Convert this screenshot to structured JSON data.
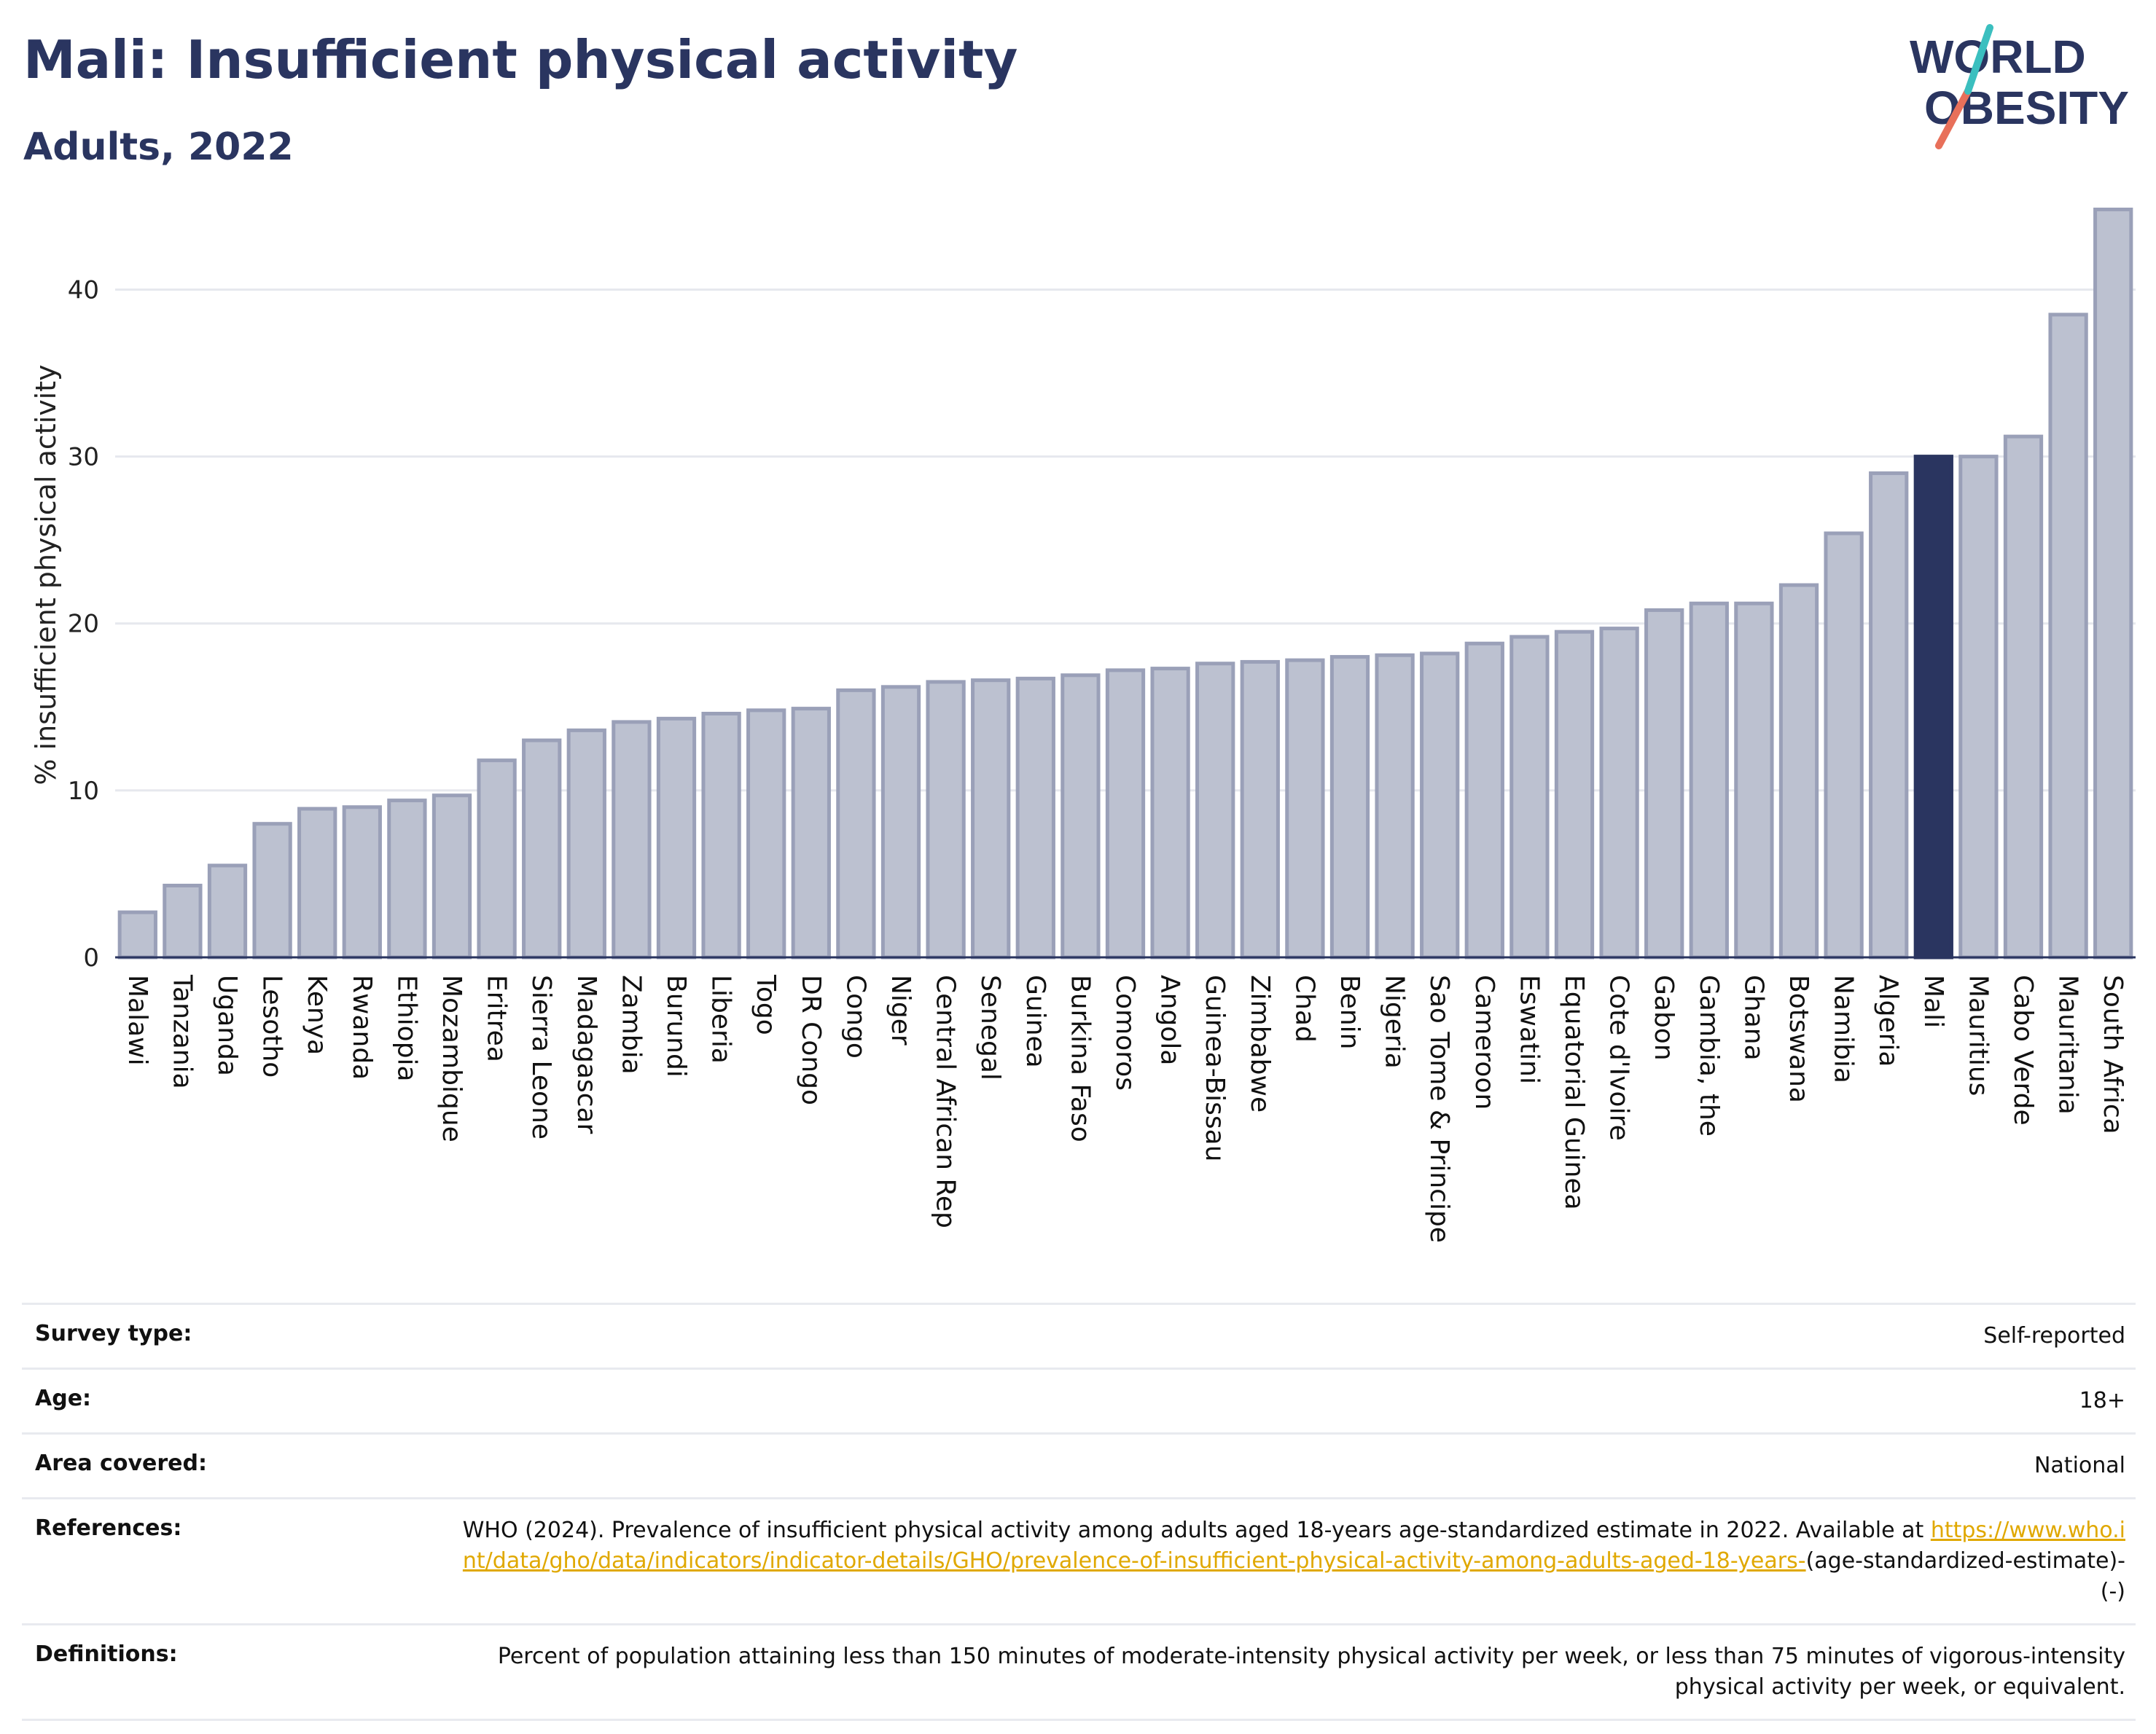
{
  "header": {
    "title": "Mali: Insufficient physical activity",
    "subtitle": "Adults, 2022"
  },
  "logo": {
    "line1": "WORLD",
    "line2": "OBESITY"
  },
  "colors": {
    "highlight": "#2a3560",
    "bar_fill": "#bcc1d0",
    "bar_stroke": "#9aa0b8",
    "grid": "#e6e8ee",
    "logo_teal": "#3bbfbf",
    "logo_coral": "#e8705a",
    "link": "#e0a800"
  },
  "chart_data": {
    "type": "bar",
    "ylabel": "% insufficient physical activity",
    "ylim": [
      0,
      46
    ],
    "yticks": [
      0,
      10,
      20,
      30,
      40
    ],
    "grid": true,
    "highlight": "Mali",
    "categories": [
      "Malawi",
      "Tanzania",
      "Uganda",
      "Lesotho",
      "Kenya",
      "Rwanda",
      "Ethiopia",
      "Mozambique",
      "Eritrea",
      "Sierra Leone",
      "Madagascar",
      "Zambia",
      "Burundi",
      "Liberia",
      "Togo",
      "DR Congo",
      "Congo",
      "Niger",
      "Central African Rep",
      "Senegal",
      "Guinea",
      "Burkina Faso",
      "Comoros",
      "Angola",
      "Guinea-Bissau",
      "Zimbabwe",
      "Chad",
      "Benin",
      "Nigeria",
      "Sao Tome & Principe",
      "Cameroon",
      "Eswatini",
      "Equatorial Guinea",
      "Cote d'Ivoire",
      "Gabon",
      "Gambia, the",
      "Ghana",
      "Botswana",
      "Namibia",
      "Algeria",
      "Mali",
      "Mauritius",
      "Cabo Verde",
      "Mauritania",
      "South Africa"
    ],
    "values": [
      2.7,
      4.3,
      5.5,
      8.0,
      8.9,
      9.0,
      9.4,
      9.7,
      11.8,
      13.0,
      13.6,
      14.1,
      14.3,
      14.6,
      14.8,
      14.9,
      16.0,
      16.2,
      16.5,
      16.6,
      16.7,
      16.9,
      17.2,
      17.3,
      17.6,
      17.7,
      17.8,
      18.0,
      18.1,
      18.2,
      18.8,
      19.2,
      19.5,
      19.7,
      20.8,
      21.2,
      21.2,
      22.3,
      25.4,
      29.0,
      30.0,
      30.0,
      31.2,
      38.5,
      44.8
    ]
  },
  "meta": [
    {
      "label": "Survey type:",
      "value": "Self-reported"
    },
    {
      "label": "Age:",
      "value": "18+"
    },
    {
      "label": "Area covered:",
      "value": "National"
    }
  ],
  "references": {
    "label": "References:",
    "text": "WHO (2024). Prevalence of insufficient physical activity among adults aged 18-years age-standardized estimate in 2022. Available at",
    "link": "https://www.who.int/data/gho/data/indicators/indicator-details/GHO/prevalence-of-insufficient-physical-activity-among-adults-aged-18-years-",
    "tail": "(age-standardized-estimate)-(-)"
  },
  "definitions": {
    "label": "Definitions:",
    "value": "Percent of population attaining less than 150 minutes of moderate-intensity physical activity per week, or less than 75 minutes of vigorous-intensity physical activity per week, or equivalent."
  }
}
